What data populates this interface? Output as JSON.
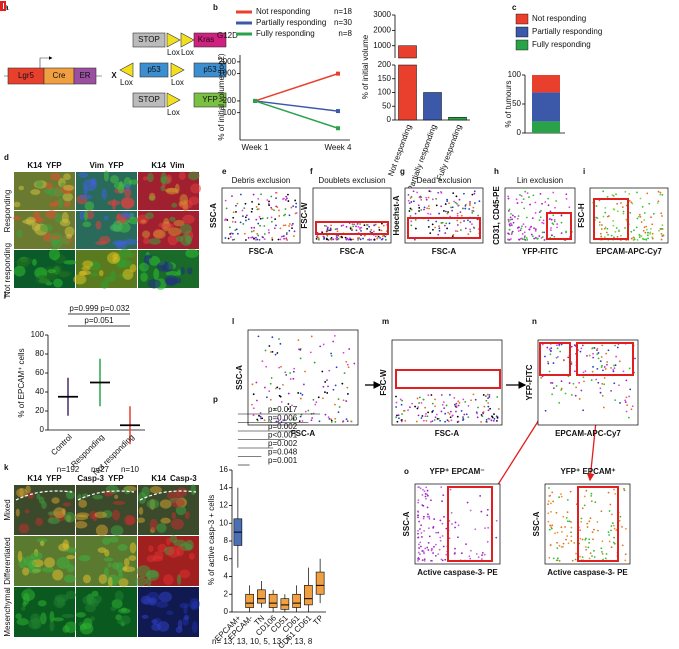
{
  "a": {
    "label": "a",
    "lgr5": "Lgr5",
    "cre": "Cre",
    "er": "ER",
    "cross": "X",
    "stop": "STOP",
    "kras": "Kras",
    "kras_sup": "G12D",
    "lox": "Lox",
    "p53": "p53",
    "yfp": "YFP"
  },
  "b": {
    "label": "b",
    "line_chart": {
      "type": "line",
      "y_label": "% of initial volume (log2)",
      "categories": [
        "Week 1",
        "Week 4"
      ],
      "log": true,
      "ylim": [
        20,
        3000
      ],
      "yticks": [
        100,
        200,
        1000,
        2000
      ],
      "series": [
        {
          "name": "Not responding",
          "n": "n=18",
          "color": "#e8402d",
          "values": [
            200,
            1000
          ]
        },
        {
          "name": "Partially responding",
          "n": "n=30",
          "color": "#3b59a8",
          "values": [
            200,
            110
          ]
        },
        {
          "name": "Fully responding",
          "n": "n=8",
          "color": "#2aa24a",
          "values": [
            200,
            40
          ]
        }
      ]
    },
    "bar_chart": {
      "type": "bar",
      "y_label": "% of initial volume",
      "categories": [
        "Not responding",
        "Partially responding",
        "Fully responding"
      ],
      "values": [
        1000,
        100,
        10
      ],
      "colors": [
        "#e8402d",
        "#3b59a8",
        "#2aa24a"
      ],
      "break": 200,
      "ylim": [
        0,
        3000
      ],
      "yticks": [
        0,
        50,
        100,
        150,
        200,
        1000,
        2000,
        3000
      ]
    }
  },
  "c": {
    "label": "c",
    "chart_data": {
      "type": "stacked-bar",
      "y_label": "% of tumours",
      "ylim": [
        0,
        100
      ],
      "yticks": [
        0,
        50,
        100
      ],
      "series": [
        {
          "name": "Not responding",
          "color": "#e8402d",
          "values": [
            30
          ]
        },
        {
          "name": "Partially responding",
          "color": "#3b59a8",
          "values": [
            50
          ]
        },
        {
          "name": "Fully responding",
          "color": "#2aa24a",
          "values": [
            20
          ]
        }
      ]
    }
  },
  "d": {
    "label": "d",
    "headers": [
      [
        "K14",
        "YFP"
      ],
      [
        "Vim",
        "YFP"
      ],
      [
        "K14",
        "Vim"
      ]
    ],
    "rows": [
      "Responding",
      "Not responding"
    ]
  },
  "e": {
    "label": "e",
    "title": "Debris exclusion",
    "x_label": "FSC-A",
    "y_label": "SSC-A"
  },
  "f": {
    "label": "f",
    "title": "Doublets exclusion",
    "x_label": "FSC-A",
    "y_label": "FSC-W"
  },
  "g": {
    "label": "g",
    "title": "Dead exclusion",
    "x_label": "FSC-A",
    "y_label": "Hoechst-A"
  },
  "h": {
    "label": "h",
    "title": "Lin exclusion",
    "x_label": "YFP-FITC",
    "y_label": "CD31, CD45-PE"
  },
  "i": {
    "label": "i",
    "x_label": "EPCAM-APC-Cy7",
    "y_label": "FSC-H"
  },
  "j": {
    "label": "j",
    "chart_data": {
      "type": "errorbar",
      "y_label": "% of EPCAM⁺ cells",
      "categories": [
        "Control",
        "Responding",
        "Not responding"
      ],
      "values": [
        35,
        50,
        5
      ],
      "errors": [
        20,
        25,
        20
      ],
      "colors": [
        "#4b2a6e",
        "#2aa24a",
        "#e8402d"
      ],
      "ylim": [
        0,
        100
      ],
      "yticks": [
        0,
        20,
        40,
        60,
        80,
        100
      ],
      "p_values": [
        "p=0.999",
        "p=0.032",
        "p=0.051"
      ],
      "n": [
        "n=192",
        "n=27",
        "n=10"
      ]
    }
  },
  "k": {
    "label": "k",
    "headers": [
      [
        "K14",
        "YFP"
      ],
      [
        "Casp-3",
        "YFP"
      ],
      [
        "K14",
        "Casp-3"
      ]
    ],
    "rows": [
      "Mixed",
      "Differentiated",
      "Mesenchymal"
    ]
  },
  "l": {
    "label": "l",
    "x_label": "FSC-A",
    "y_label": "SSC-A"
  },
  "m": {
    "label": "m",
    "x_label": "FSC-A",
    "y_label": "FSC-W"
  },
  "n": {
    "label": "n",
    "x_label": "EPCAM-APC-Cy7",
    "y_label": "YFP-FITC"
  },
  "o": {
    "label": "o",
    "titles": [
      "YFP⁺ EPCAM⁻",
      "YFP⁺ EPCAM⁺"
    ],
    "x_label": "Active caspase-3- PE",
    "y_label": "SSC-A"
  },
  "p": {
    "label": "p",
    "chart_data": {
      "type": "box",
      "y_label": "% of active casp-3 + cells",
      "categories": [
        "EPCAM+",
        "EPCAM-",
        "TN",
        "CD106",
        "CD51",
        "CD61",
        "CD51 CD61",
        "TP"
      ],
      "boxes": [
        {
          "min": 5,
          "q1": 7.5,
          "median": 9,
          "q3": 10.5,
          "max": 14
        },
        {
          "min": 0,
          "q1": 0.5,
          "median": 1,
          "q3": 2,
          "max": 3
        },
        {
          "min": 0.5,
          "q1": 1,
          "median": 1.5,
          "q3": 2.5,
          "max": 3.5
        },
        {
          "min": 0,
          "q1": 0.5,
          "median": 1,
          "q3": 2,
          "max": 2.5
        },
        {
          "min": 0,
          "q1": 0.3,
          "median": 0.8,
          "q3": 1.5,
          "max": 2
        },
        {
          "min": 0,
          "q1": 0.5,
          "median": 1,
          "q3": 2,
          "max": 3
        },
        {
          "min": 0,
          "q1": 0.8,
          "median": 1.5,
          "q3": 3,
          "max": 5
        },
        {
          "min": 1,
          "q1": 2,
          "median": 3,
          "q3": 4.5,
          "max": 6
        }
      ],
      "colors": [
        "#4a6fb5",
        "#f0a040",
        "#f0a040",
        "#f0a040",
        "#f0a040",
        "#f0a040",
        "#f0a040",
        "#f0a040"
      ],
      "ylim": [
        0,
        16
      ],
      "yticks": [
        0,
        2,
        4,
        6,
        8,
        10,
        12,
        14,
        16
      ],
      "comparisons": [
        "p=0.001",
        "p=0.048",
        "p=0.002",
        "p<0.001",
        "p=0.002",
        "p=0.006",
        "p=0.017"
      ],
      "n_label": "n= 13, 13, 10, 5, 13, 7, 13, 8"
    }
  }
}
